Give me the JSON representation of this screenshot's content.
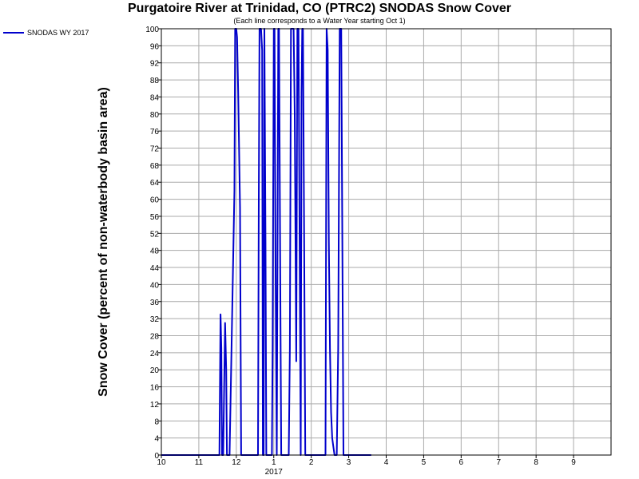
{
  "chart_data": {
    "type": "line",
    "title": "Purgatoire River at Trinidad, CO (PTRC2) SNODAS Snow Cover",
    "subtitle": "(Each line corresponds to a Water Year starting Oct 1)",
    "ylabel": "Snow Cover (percent of non-waterbody basin area)",
    "xlabel": "",
    "ylim": [
      0,
      100
    ],
    "xlim": [
      0,
      12
    ],
    "grid": true,
    "legend_position": "top-left",
    "y_ticks": [
      0,
      4,
      8,
      12,
      16,
      20,
      24,
      28,
      32,
      36,
      40,
      44,
      48,
      52,
      56,
      60,
      64,
      68,
      72,
      76,
      80,
      84,
      88,
      92,
      96,
      100
    ],
    "x_ticks": [
      {
        "value": 0,
        "label": "10"
      },
      {
        "value": 1,
        "label": "11"
      },
      {
        "value": 2,
        "label": "12"
      },
      {
        "value": 3,
        "label": "1"
      },
      {
        "value": 4,
        "label": "2"
      },
      {
        "value": 5,
        "label": "3"
      },
      {
        "value": 6,
        "label": "4"
      },
      {
        "value": 7,
        "label": "5"
      },
      {
        "value": 8,
        "label": "6"
      },
      {
        "value": 9,
        "label": "7"
      },
      {
        "value": 10,
        "label": "8"
      },
      {
        "value": 11,
        "label": "9"
      }
    ],
    "x_sublabel": {
      "value": 3,
      "label": "2017"
    },
    "series": [
      {
        "name": "SNODAS WY 2017",
        "color": "#0000cc",
        "x": [
          0,
          1,
          1.55,
          1.58,
          1.6,
          1.62,
          1.65,
          1.7,
          1.73,
          1.75,
          1.78,
          1.82,
          1.95,
          1.97,
          2.0,
          2.02,
          2.05,
          2.1,
          2.13,
          2.17,
          2.2,
          2.22,
          2.25,
          2.58,
          2.6,
          2.62,
          2.66,
          2.69,
          2.71,
          2.73,
          2.75,
          2.78,
          2.8,
          2.82,
          2.95,
          2.97,
          3.0,
          3.02,
          3.05,
          3.08,
          3.12,
          3.14,
          3.18,
          3.2,
          3.22,
          3.4,
          3.43,
          3.46,
          3.5,
          3.53,
          3.56,
          3.6,
          3.63,
          3.66,
          3.69,
          3.72,
          3.74,
          3.76,
          3.78,
          3.81,
          3.84,
          3.88,
          3.92,
          3.96,
          3.99,
          4.38,
          4.41,
          4.44,
          4.47,
          4.5,
          4.53,
          4.56,
          4.59,
          4.62,
          4.65,
          4.68,
          4.72,
          4.76,
          4.8,
          4.83,
          4.86,
          4.88,
          4.9,
          4.93,
          5.0,
          5.6
        ],
        "y": [
          0,
          0,
          0,
          33,
          25,
          0,
          0,
          31,
          20,
          0,
          0,
          0,
          62,
          100,
          100,
          98,
          85,
          58,
          0,
          0,
          0,
          0,
          0,
          0,
          60,
          100,
          100,
          95,
          0,
          0,
          100,
          50,
          0,
          0,
          0,
          25,
          100,
          100,
          40,
          0,
          100,
          100,
          30,
          0,
          0,
          0,
          25,
          100,
          100,
          100,
          80,
          22,
          100,
          100,
          50,
          0,
          85,
          100,
          100,
          50,
          0,
          0,
          0,
          0,
          0,
          0,
          100,
          95,
          50,
          25,
          10,
          4,
          2,
          0,
          0,
          0,
          25,
          100,
          100,
          50,
          0,
          0,
          0,
          0,
          0,
          0
        ]
      }
    ]
  }
}
